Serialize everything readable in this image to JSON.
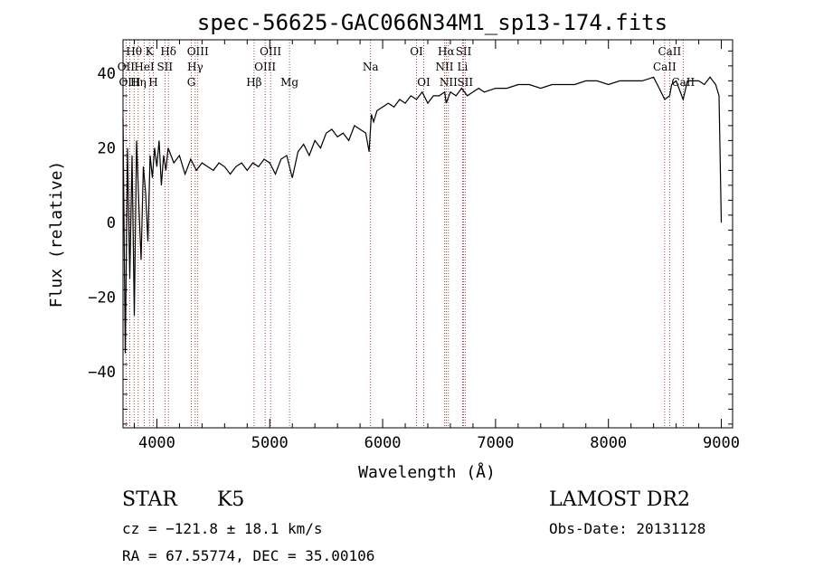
{
  "chart_data": {
    "type": "line",
    "title": "spec-56625-GAC066N34M1_sp13-174.fits",
    "xlabel": "Wavelength (Å)",
    "ylabel": "Flux (relative)",
    "xlim": [
      3700,
      9100
    ],
    "ylim": [
      -55,
      49
    ],
    "xticks": [
      4000,
      5000,
      6000,
      7000,
      8000,
      9000
    ],
    "yticks": [
      -40,
      -20,
      0,
      20,
      40
    ],
    "grid": false,
    "series": [
      {
        "x": [
          3700,
          3720,
          3740,
          3760,
          3780,
          3800,
          3820,
          3840,
          3860,
          3880,
          3900,
          3920,
          3940,
          3960,
          3980,
          4000,
          4020,
          4040,
          4060,
          4080,
          4100,
          4150,
          4200,
          4250,
          4300,
          4350,
          4400,
          4450,
          4500,
          4550,
          4600,
          4650,
          4700,
          4750,
          4800,
          4850,
          4900,
          4950,
          5000,
          5050,
          5100,
          5150,
          5200,
          5250,
          5300,
          5350,
          5400,
          5450,
          5500,
          5550,
          5600,
          5650,
          5700,
          5750,
          5800,
          5850,
          5880,
          5900,
          5920,
          5950,
          6000,
          6050,
          6100,
          6150,
          6200,
          6250,
          6300,
          6350,
          6400,
          6450,
          6500,
          6550,
          6563,
          6600,
          6650,
          6700,
          6750,
          6800,
          6850,
          6900,
          7000,
          7100,
          7200,
          7300,
          7400,
          7500,
          7600,
          7700,
          7800,
          7900,
          8000,
          8100,
          8200,
          8300,
          8400,
          8450,
          8498,
          8542,
          8560,
          8600,
          8662,
          8700,
          8750,
          8800,
          8850,
          8900,
          8950,
          8980,
          9000
        ],
        "y": [
          28,
          -35,
          20,
          -15,
          18,
          -25,
          22,
          5,
          -10,
          15,
          8,
          -5,
          18,
          12,
          20,
          15,
          22,
          10,
          18,
          14,
          20,
          16,
          18,
          13,
          17,
          14,
          16,
          15,
          14,
          16,
          15,
          13,
          15,
          16,
          14,
          16,
          15,
          17,
          16,
          13,
          17,
          18,
          12,
          19,
          21,
          18,
          22,
          20,
          24,
          25,
          23,
          24,
          22,
          26,
          25,
          24,
          19,
          29,
          27,
          30,
          31,
          32,
          31,
          33,
          32,
          34,
          33,
          35,
          32,
          34,
          34,
          35,
          32,
          35,
          34,
          36,
          34,
          35,
          36,
          35,
          36,
          36,
          37,
          37,
          36,
          37,
          37,
          37,
          38,
          38,
          37,
          38,
          38,
          38,
          39,
          36,
          33,
          34,
          37,
          38,
          33,
          38,
          38,
          38,
          37,
          39,
          37,
          34,
          0
        ]
      }
    ],
    "lines": [
      {
        "label": "Hθ",
        "x": 3798,
        "row": 0
      },
      {
        "label": "OII",
        "x": 3727,
        "row": 1
      },
      {
        "label": "OIII",
        "x": 3760,
        "row": 2
      },
      {
        "label": "Hη",
        "x": 3835,
        "row": 2
      },
      {
        "label": "HeI",
        "x": 3889,
        "row": 1
      },
      {
        "label": "K",
        "x": 3934,
        "row": 0
      },
      {
        "label": "H",
        "x": 3968,
        "row": 2
      },
      {
        "label": "SII",
        "x": 4071,
        "row": 1
      },
      {
        "label": "Hδ",
        "x": 4102,
        "row": 0
      },
      {
        "label": "OIII",
        "x": 4363,
        "row": 0
      },
      {
        "label": "Hγ",
        "x": 4340,
        "row": 1
      },
      {
        "label": "G",
        "x": 4305,
        "row": 2
      },
      {
        "label": "Hβ",
        "x": 4861,
        "row": 2
      },
      {
        "label": "OIII",
        "x": 4959,
        "row": 1
      },
      {
        "label": "OIII",
        "x": 5007,
        "row": 0
      },
      {
        "label": "Mg",
        "x": 5175,
        "row": 2
      },
      {
        "label": "Na",
        "x": 5893,
        "row": 1
      },
      {
        "label": "OI",
        "x": 6300,
        "row": 0
      },
      {
        "label": "OI",
        "x": 6364,
        "row": 2
      },
      {
        "label": "NII",
        "x": 6548,
        "row": 1
      },
      {
        "label": "NII",
        "x": 6583,
        "row": 2
      },
      {
        "label": "Hα",
        "x": 6563,
        "row": 0
      },
      {
        "label": "SII",
        "x": 6717,
        "row": 0
      },
      {
        "label": "SII",
        "x": 6731,
        "row": 2
      },
      {
        "label": "Li",
        "x": 6708,
        "row": 1
      },
      {
        "label": "CaII",
        "x": 8498,
        "row": 1
      },
      {
        "label": "CaII",
        "x": 8542,
        "row": 0
      },
      {
        "label": "CaII",
        "x": 8662,
        "row": 2
      }
    ]
  },
  "info": {
    "class": "STAR",
    "subclass": "K5",
    "survey": "LAMOST DR2",
    "cz": "cz = −121.8 ± 18.1 km/s",
    "obs_date": "Obs-Date: 20131128",
    "radec": "RA =  67.55774, DEC =  35.00106"
  },
  "colors": {
    "spectrum": "#000000",
    "lines": "#8b1a1a"
  }
}
